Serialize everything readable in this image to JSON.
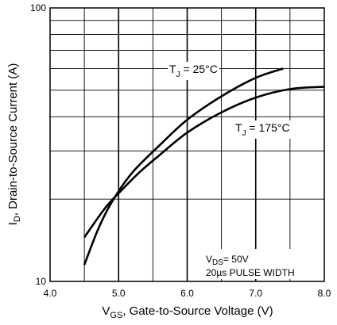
{
  "chart_data": {
    "type": "line",
    "xlabel": {
      "main": "V",
      "sub": "GS",
      "rest": ", Gate-to-Source Voltage (V)"
    },
    "ylabel": {
      "main": "I",
      "sub": "D",
      "rest": ",  Drain-to-Source Current (A)"
    },
    "x_scale": "linear",
    "y_scale": "log",
    "xlim": [
      4.0,
      8.0
    ],
    "ylim": [
      10,
      100
    ],
    "x_ticks": [
      "4.0",
      "5.0",
      "6.0",
      "7.0",
      "8.0"
    ],
    "x_tick_values": [
      4.0,
      5.0,
      6.0,
      7.0,
      8.0
    ],
    "y_ticks": [
      "10",
      "100"
    ],
    "y_tick_values": [
      10,
      100
    ],
    "grid": true,
    "series": [
      {
        "name": {
          "main": "T",
          "sub": "J",
          "rest": " = 25°C"
        },
        "x": [
          4.5,
          4.7,
          4.9,
          5.2,
          5.6,
          6.0,
          6.5,
          7.0,
          7.4
        ],
        "y": [
          11.5,
          15.5,
          19.5,
          25.0,
          31.5,
          39.0,
          47.5,
          55.5,
          60.0
        ]
      },
      {
        "name": {
          "main": "T",
          "sub": "J",
          "rest": " = 175°C"
        },
        "x": [
          4.5,
          4.8,
          5.0,
          5.3,
          5.6,
          6.0,
          6.5,
          7.0,
          7.5,
          8.0
        ],
        "y": [
          14.5,
          18.5,
          21.0,
          25.0,
          29.0,
          35.0,
          41.5,
          47.0,
          50.5,
          51.5
        ]
      }
    ],
    "annotation": {
      "vds": {
        "main": "V",
        "sub": "DS",
        "rest": "= 50V"
      },
      "pulse": "20µs PULSE WIDTH"
    }
  }
}
